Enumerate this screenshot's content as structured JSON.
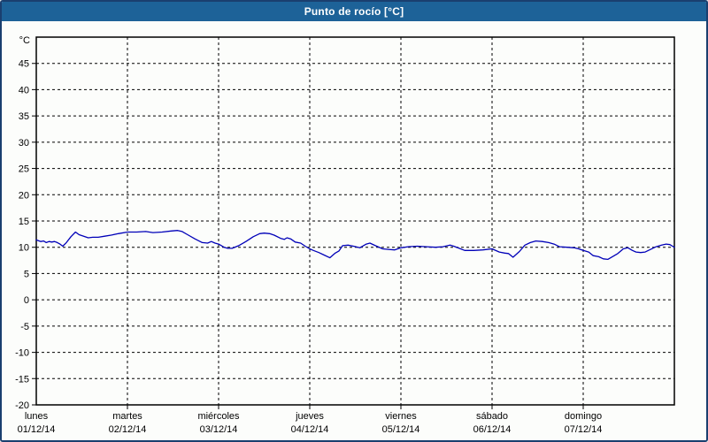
{
  "window": {
    "title": "Punto de rocío [°C]"
  },
  "colors": {
    "titlebar_bg": "#1D6298",
    "titlebar_text": "#FFFFFF",
    "frame_border": "#1A3F6F",
    "content_bg": "#FCFDFB",
    "grid": "#000000",
    "axis": "#000000",
    "line": "#0000B8"
  },
  "chart_data": {
    "type": "line",
    "title": "Punto de rocío [°C]",
    "unit_label": "°C",
    "ylim": [
      -20,
      50
    ],
    "ytick_step": 5,
    "yticks_labeled": [
      45,
      40,
      35,
      30,
      25,
      20,
      15,
      10,
      5,
      0,
      -5,
      -10,
      -15,
      -20
    ],
    "grid": "dashed",
    "legend_position": "none",
    "x_days": [
      {
        "day": "lunes",
        "date": "01/12/14"
      },
      {
        "day": "martes",
        "date": "02/12/14"
      },
      {
        "day": "miércoles",
        "date": "03/12/14"
      },
      {
        "day": "jueves",
        "date": "04/12/14"
      },
      {
        "day": "viernes",
        "date": "05/12/14"
      },
      {
        "day": "sábado",
        "date": "06/12/14"
      },
      {
        "day": "domingo",
        "date": "07/12/14"
      }
    ],
    "series": [
      {
        "name": "Punto de rocío",
        "color": "#0000B8",
        "x_unit": "days_from_start",
        "y_unit": "°C",
        "points": [
          [
            0.0,
            11.4
          ],
          [
            0.05,
            11.1
          ],
          [
            0.08,
            11.2
          ],
          [
            0.11,
            10.9
          ],
          [
            0.14,
            11.1
          ],
          [
            0.17,
            11.0
          ],
          [
            0.2,
            11.1
          ],
          [
            0.23,
            10.9
          ],
          [
            0.26,
            10.6
          ],
          [
            0.29,
            10.2
          ],
          [
            0.33,
            10.9
          ],
          [
            0.38,
            12.0
          ],
          [
            0.43,
            12.9
          ],
          [
            0.47,
            12.4
          ],
          [
            0.52,
            12.1
          ],
          [
            0.57,
            11.8
          ],
          [
            0.62,
            11.9
          ],
          [
            0.68,
            11.9
          ],
          [
            0.75,
            12.1
          ],
          [
            0.82,
            12.3
          ],
          [
            0.9,
            12.6
          ],
          [
            1.0,
            12.9
          ],
          [
            1.1,
            12.9
          ],
          [
            1.2,
            13.0
          ],
          [
            1.28,
            12.8
          ],
          [
            1.38,
            12.9
          ],
          [
            1.48,
            13.1
          ],
          [
            1.55,
            13.2
          ],
          [
            1.6,
            13.0
          ],
          [
            1.66,
            12.4
          ],
          [
            1.74,
            11.6
          ],
          [
            1.82,
            10.9
          ],
          [
            1.88,
            10.8
          ],
          [
            1.92,
            11.1
          ],
          [
            1.96,
            10.8
          ],
          [
            2.0,
            10.6
          ],
          [
            2.06,
            10.0
          ],
          [
            2.1,
            9.8
          ],
          [
            2.15,
            9.8
          ],
          [
            2.22,
            10.3
          ],
          [
            2.3,
            11.1
          ],
          [
            2.38,
            12.0
          ],
          [
            2.45,
            12.6
          ],
          [
            2.5,
            12.7
          ],
          [
            2.56,
            12.6
          ],
          [
            2.61,
            12.3
          ],
          [
            2.68,
            11.7
          ],
          [
            2.72,
            11.5
          ],
          [
            2.75,
            11.8
          ],
          [
            2.79,
            11.6
          ],
          [
            2.84,
            11.0
          ],
          [
            2.9,
            10.8
          ],
          [
            2.95,
            10.2
          ],
          [
            3.0,
            9.7
          ],
          [
            3.04,
            9.4
          ],
          [
            3.1,
            9.0
          ],
          [
            3.16,
            8.5
          ],
          [
            3.22,
            8.0
          ],
          [
            3.28,
            8.9
          ],
          [
            3.32,
            9.3
          ],
          [
            3.36,
            10.3
          ],
          [
            3.42,
            10.4
          ],
          [
            3.48,
            10.2
          ],
          [
            3.55,
            9.9
          ],
          [
            3.62,
            10.6
          ],
          [
            3.66,
            10.8
          ],
          [
            3.72,
            10.3
          ],
          [
            3.8,
            9.7
          ],
          [
            3.86,
            9.6
          ],
          [
            3.93,
            9.5
          ],
          [
            4.0,
            9.9
          ],
          [
            4.08,
            10.1
          ],
          [
            4.18,
            10.2
          ],
          [
            4.28,
            10.1
          ],
          [
            4.38,
            10.0
          ],
          [
            4.46,
            10.1
          ],
          [
            4.54,
            10.4
          ],
          [
            4.58,
            10.2
          ],
          [
            4.64,
            9.8
          ],
          [
            4.7,
            9.4
          ],
          [
            4.8,
            9.4
          ],
          [
            4.9,
            9.5
          ],
          [
            5.0,
            9.7
          ],
          [
            5.08,
            9.1
          ],
          [
            5.14,
            8.9
          ],
          [
            5.18,
            8.8
          ],
          [
            5.23,
            8.1
          ],
          [
            5.3,
            9.2
          ],
          [
            5.36,
            10.4
          ],
          [
            5.42,
            10.9
          ],
          [
            5.48,
            11.2
          ],
          [
            5.55,
            11.1
          ],
          [
            5.62,
            10.9
          ],
          [
            5.68,
            10.6
          ],
          [
            5.74,
            10.1
          ],
          [
            5.82,
            10.0
          ],
          [
            5.9,
            9.9
          ],
          [
            5.95,
            9.7
          ],
          [
            6.0,
            9.4
          ],
          [
            6.06,
            9.1
          ],
          [
            6.11,
            8.4
          ],
          [
            6.17,
            8.2
          ],
          [
            6.22,
            7.8
          ],
          [
            6.27,
            7.7
          ],
          [
            6.33,
            8.3
          ],
          [
            6.38,
            8.8
          ],
          [
            6.44,
            9.7
          ],
          [
            6.49,
            9.9
          ],
          [
            6.54,
            9.4
          ],
          [
            6.58,
            9.1
          ],
          [
            6.63,
            9.0
          ],
          [
            6.68,
            9.1
          ],
          [
            6.74,
            9.6
          ],
          [
            6.8,
            10.1
          ],
          [
            6.86,
            10.4
          ],
          [
            6.91,
            10.6
          ],
          [
            6.95,
            10.5
          ],
          [
            6.98,
            10.2
          ],
          [
            7.0,
            10.0
          ]
        ]
      }
    ]
  }
}
